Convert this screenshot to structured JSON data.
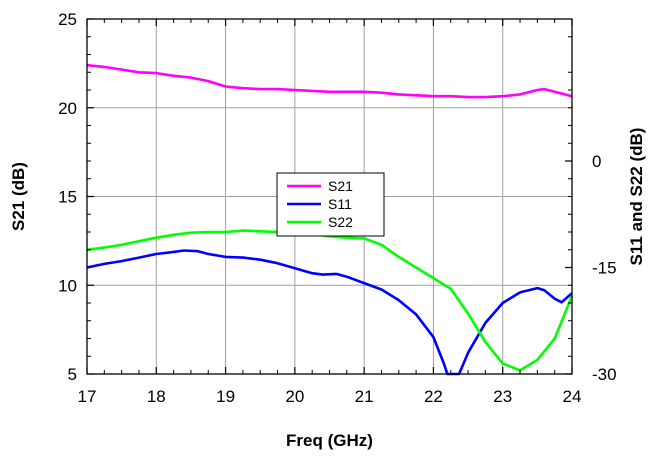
{
  "chart_data": {
    "type": "line",
    "xlabel": "Freq (GHz)",
    "ylabel_left": "S21 (dB)",
    "ylabel_right": "S11 and S22 (dB)",
    "xlim": [
      17,
      24
    ],
    "ylim_left": [
      5,
      25
    ],
    "ylim_right": [
      -30,
      20
    ],
    "x_ticks": [
      "17",
      "18",
      "19",
      "20",
      "21",
      "22",
      "23",
      "24"
    ],
    "y_ticks_left": [
      "5",
      "10",
      "15",
      "20",
      "25"
    ],
    "y_ticks_right": [
      "0",
      "-15",
      "-30"
    ],
    "y_tick_values_right": [
      0,
      -15,
      -30
    ],
    "grid": true,
    "legend_position": "center",
    "series": [
      {
        "name": "S21",
        "axis": "left",
        "color": "#ff00ff",
        "points": [
          [
            17.0,
            22.4
          ],
          [
            17.25,
            22.3
          ],
          [
            17.5,
            22.15
          ],
          [
            17.75,
            22.0
          ],
          [
            18.0,
            21.95
          ],
          [
            18.25,
            21.8
          ],
          [
            18.5,
            21.7
          ],
          [
            18.75,
            21.5
          ],
          [
            19.0,
            21.2
          ],
          [
            19.25,
            21.1
          ],
          [
            19.5,
            21.05
          ],
          [
            19.75,
            21.05
          ],
          [
            20.0,
            21.0
          ],
          [
            20.25,
            20.95
          ],
          [
            20.5,
            20.9
          ],
          [
            20.75,
            20.9
          ],
          [
            21.0,
            20.9
          ],
          [
            21.25,
            20.85
          ],
          [
            21.5,
            20.75
          ],
          [
            21.75,
            20.7
          ],
          [
            22.0,
            20.65
          ],
          [
            22.25,
            20.65
          ],
          [
            22.5,
            20.6
          ],
          [
            22.75,
            20.6
          ],
          [
            23.0,
            20.65
          ],
          [
            23.25,
            20.75
          ],
          [
            23.5,
            21.0
          ],
          [
            23.6,
            21.05
          ],
          [
            23.75,
            20.9
          ],
          [
            24.0,
            20.65
          ]
        ]
      },
      {
        "name": "S11",
        "axis": "right",
        "color": "#0000ff",
        "points": [
          [
            17.0,
            -15.0
          ],
          [
            17.25,
            -14.5
          ],
          [
            17.5,
            -14.1
          ],
          [
            17.75,
            -13.6
          ],
          [
            18.0,
            -13.1
          ],
          [
            18.25,
            -12.8
          ],
          [
            18.4,
            -12.6
          ],
          [
            18.6,
            -12.7
          ],
          [
            18.75,
            -13.1
          ],
          [
            19.0,
            -13.5
          ],
          [
            19.25,
            -13.6
          ],
          [
            19.5,
            -13.9
          ],
          [
            19.75,
            -14.4
          ],
          [
            20.0,
            -15.1
          ],
          [
            20.25,
            -15.8
          ],
          [
            20.4,
            -16.0
          ],
          [
            20.6,
            -15.9
          ],
          [
            20.75,
            -16.3
          ],
          [
            21.0,
            -17.2
          ],
          [
            21.25,
            -18.1
          ],
          [
            21.5,
            -19.6
          ],
          [
            21.75,
            -21.6
          ],
          [
            22.0,
            -24.8
          ],
          [
            22.15,
            -28.5
          ],
          [
            22.2,
            -30.0
          ],
          [
            22.37,
            -30.0
          ],
          [
            22.5,
            -27.0
          ],
          [
            22.75,
            -22.8
          ],
          [
            23.0,
            -20.0
          ],
          [
            23.25,
            -18.5
          ],
          [
            23.5,
            -17.9
          ],
          [
            23.6,
            -18.2
          ],
          [
            23.75,
            -19.4
          ],
          [
            23.85,
            -19.9
          ],
          [
            24.0,
            -18.6
          ]
        ]
      },
      {
        "name": "S22",
        "axis": "right",
        "color": "#00ff00",
        "points": [
          [
            17.0,
            -12.5
          ],
          [
            17.25,
            -12.2
          ],
          [
            17.5,
            -11.8
          ],
          [
            17.75,
            -11.3
          ],
          [
            18.0,
            -10.8
          ],
          [
            18.25,
            -10.4
          ],
          [
            18.5,
            -10.1
          ],
          [
            18.75,
            -10.0
          ],
          [
            19.0,
            -10.0
          ],
          [
            19.25,
            -9.8
          ],
          [
            19.5,
            -9.9
          ],
          [
            19.75,
            -10.0
          ],
          [
            20.0,
            -10.0
          ],
          [
            20.25,
            -10.3
          ],
          [
            20.5,
            -10.6
          ],
          [
            20.75,
            -10.8
          ],
          [
            21.0,
            -10.9
          ],
          [
            21.25,
            -11.8
          ],
          [
            21.5,
            -13.5
          ],
          [
            21.75,
            -15.0
          ],
          [
            22.0,
            -16.5
          ],
          [
            22.25,
            -18.0
          ],
          [
            22.5,
            -21.5
          ],
          [
            22.75,
            -25.5
          ],
          [
            23.0,
            -28.5
          ],
          [
            23.25,
            -29.5
          ],
          [
            23.5,
            -28.0
          ],
          [
            23.75,
            -25.0
          ],
          [
            24.0,
            -19.0
          ]
        ]
      }
    ]
  }
}
